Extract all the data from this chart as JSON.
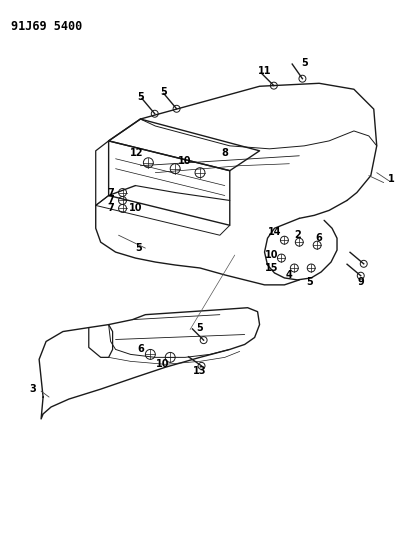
{
  "title": "91J69 5400",
  "bg_color": "#ffffff",
  "line_color": "#1a1a1a",
  "text_color": "#000000",
  "title_fontsize": 8.5,
  "label_fontsize": 7,
  "figsize": [
    3.97,
    5.33
  ],
  "dpi": 100
}
